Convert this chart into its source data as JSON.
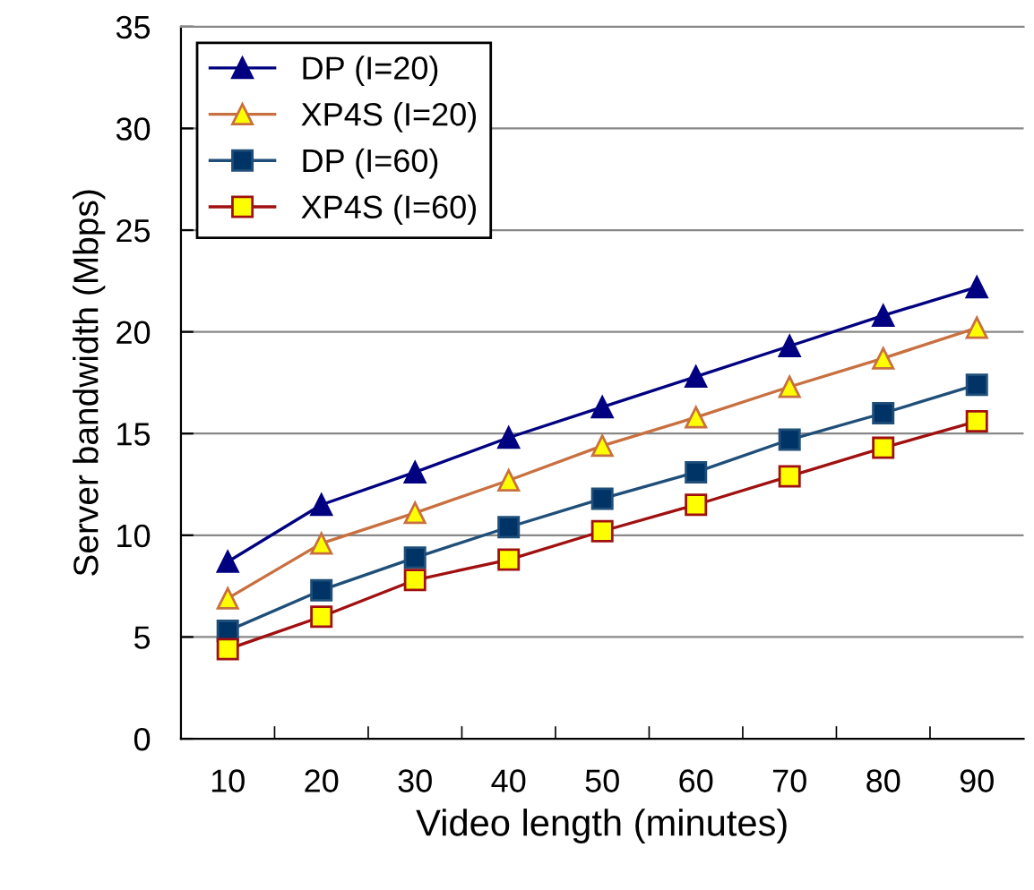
{
  "chart_data": {
    "type": "line",
    "xlabel": "Video length (minutes)",
    "ylabel": "Server bandwidth (Mbps)",
    "categories": [
      "10",
      "20",
      "30",
      "40",
      "50",
      "60",
      "70",
      "80",
      "90"
    ],
    "ylim": [
      0,
      35
    ],
    "yticks": [
      0,
      5,
      10,
      15,
      20,
      25,
      30,
      35
    ],
    "grid": "y",
    "legend": "top left",
    "series": [
      {
        "name": "DP (I=20)",
        "color": "#000080",
        "marker": "triangle",
        "values": [
          8.7,
          11.5,
          13.1,
          14.8,
          16.3,
          17.8,
          19.3,
          20.8,
          22.2
        ]
      },
      {
        "name": "XP4S (I=20)",
        "color": "#c87040",
        "marker": "triangle",
        "values": [
          6.9,
          9.6,
          11.1,
          12.7,
          14.4,
          15.8,
          17.3,
          18.7,
          20.2
        ]
      },
      {
        "name": "DP (I=60)",
        "color": "#1f4e79",
        "marker": "square",
        "values": [
          5.3,
          7.3,
          8.9,
          10.4,
          11.8,
          13.1,
          14.7,
          16.0,
          17.4
        ]
      },
      {
        "name": "XP4S (I=60)",
        "color": "#a01010",
        "marker": "square",
        "values": [
          4.4,
          6.0,
          7.8,
          8.8,
          10.2,
          11.5,
          12.9,
          14.3,
          15.6
        ]
      }
    ]
  }
}
